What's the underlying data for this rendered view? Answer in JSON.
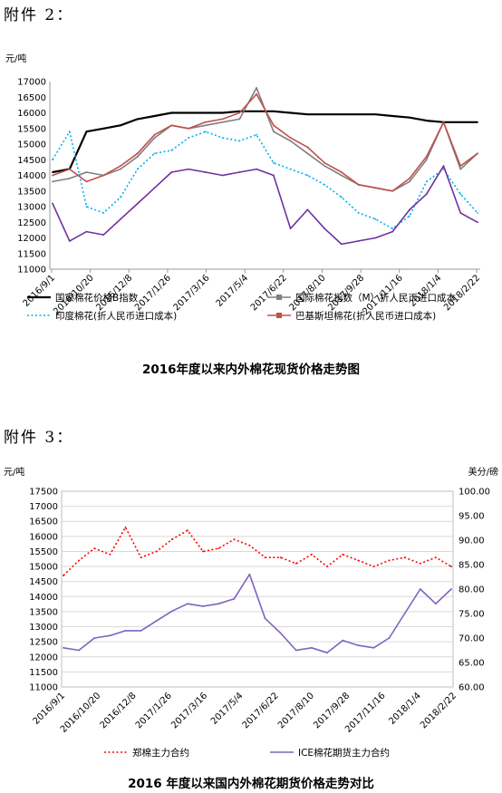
{
  "section1": {
    "heading": "附件 2：",
    "caption": "2016年度以来内外棉花现货价格走势图"
  },
  "section2": {
    "heading": "附件 3：",
    "caption": "2016 年度以来国内外棉花期货价格走势对比"
  },
  "chart_data": [
    {
      "type": "line",
      "title": "2016年度以来内外棉花现货价格走势图",
      "ylabel": "元/吨",
      "ylim": [
        11000,
        17000
      ],
      "yticks": [
        "17000",
        "16500",
        "16000",
        "15500",
        "15000",
        "14500",
        "14000",
        "13500",
        "13000",
        "12500",
        "12000",
        "11500",
        "11000"
      ],
      "xticks": [
        "2016/9/1",
        "2016/10/20",
        "2016/12/8",
        "2017/1/26",
        "2017/3/16",
        "2017/5/4",
        "2017/6/22",
        "2017/8/10",
        "2017/9/28",
        "2017/11/16",
        "2018/1/4",
        "2018/2/22"
      ],
      "legend": "bottom",
      "series": [
        {
          "name": "国家棉花价格B指数",
          "color": "#000000",
          "style": "solid-thick",
          "values": [
            14100,
            14200,
            15400,
            15500,
            15600,
            15800,
            15900,
            16000,
            16000,
            16000,
            16000,
            16050,
            16050,
            16050,
            16000,
            15950,
            15950,
            15950,
            15950,
            15950,
            15900,
            15850,
            15750,
            15700,
            15700,
            15700
          ]
        },
        {
          "name": "国际棉花指数（M）折人民币进口成本",
          "color": "#7f7f7f",
          "style": "solid",
          "values": [
            13800,
            13900,
            14100,
            14000,
            14200,
            14600,
            15200,
            15600,
            15500,
            15600,
            15700,
            15800,
            16800,
            15400,
            15100,
            14700,
            14300,
            14000,
            13700,
            13600,
            13500,
            13800,
            14500,
            15700,
            14200,
            14700
          ]
        },
        {
          "name": "印度棉花(折人民币进口成本)",
          "color": "#00b0f0",
          "style": "dotted",
          "values": [
            14500,
            15400,
            13000,
            12800,
            13300,
            14200,
            14700,
            14800,
            15200,
            15400,
            15200,
            15100,
            15300,
            14400,
            14200,
            14000,
            13700,
            13300,
            12800,
            12600,
            12300,
            12700,
            13800,
            14200,
            13400,
            12800
          ]
        },
        {
          "name": "巴基斯坦棉花(折人民币进口成本)",
          "color": "#c0504d",
          "style": "solid",
          "values": [
            14000,
            14200,
            13800,
            14000,
            14300,
            14700,
            15300,
            15600,
            15500,
            15700,
            15800,
            16000,
            16600,
            15600,
            15200,
            14900,
            14400,
            14100,
            13700,
            13600,
            13500,
            13900,
            14600,
            15700,
            14300,
            14700
          ]
        },
        {
          "name": "",
          "color": "#7030a0",
          "style": "solid",
          "values": [
            13100,
            11900,
            12200,
            12100,
            12600,
            13100,
            13600,
            14100,
            14200,
            14100,
            14000,
            14100,
            14200,
            14000,
            12300,
            12900,
            12300,
            11800,
            11900,
            12000,
            12200,
            12900,
            13400,
            14300,
            12800,
            12500
          ]
        }
      ]
    },
    {
      "type": "line",
      "title": "2016 年度以来国内外棉花期货价格走势对比",
      "ylabel": "元/吨",
      "y2label": "美分/磅",
      "ylim": [
        11000,
        17500
      ],
      "y2lim": [
        60,
        100
      ],
      "yticks": [
        "17500",
        "17000",
        "16500",
        "16000",
        "15500",
        "15000",
        "14500",
        "14000",
        "13500",
        "13000",
        "12500",
        "12000",
        "11500",
        "11000"
      ],
      "y2ticks": [
        "100.00",
        "95.00",
        "90.00",
        "85.00",
        "80.00",
        "75.00",
        "70.00",
        "65.00",
        "60.00"
      ],
      "xticks": [
        "2016/9/1",
        "2016/10/20",
        "2016/12/8",
        "2017/1/26",
        "2017/3/16",
        "2017/5/4",
        "2017/6/22",
        "2017/8/10",
        "2017/9/28",
        "2017/11/16",
        "2018/1/4",
        "2018/2/22"
      ],
      "legend": "bottom",
      "series": [
        {
          "name": "郑棉主力合约",
          "axis": "left",
          "color": "#ff0000",
          "style": "dotted",
          "values": [
            14700,
            15200,
            15600,
            15400,
            16300,
            15300,
            15500,
            15900,
            16200,
            15500,
            15600,
            15900,
            15700,
            15300,
            15300,
            15100,
            15400,
            15000,
            15400,
            15200,
            15000,
            15200,
            15300,
            15100,
            15300,
            15000
          ]
        },
        {
          "name": "ICE棉花期货主力合约",
          "axis": "right",
          "color": "#7f62c0",
          "style": "solid",
          "values": [
            68,
            67.5,
            70,
            70.5,
            71.5,
            71.5,
            73.5,
            75.5,
            77,
            76.5,
            77,
            78,
            83,
            74,
            71,
            67.5,
            68,
            67,
            69.5,
            68.5,
            68,
            70,
            75,
            80,
            77,
            80
          ]
        }
      ]
    }
  ]
}
